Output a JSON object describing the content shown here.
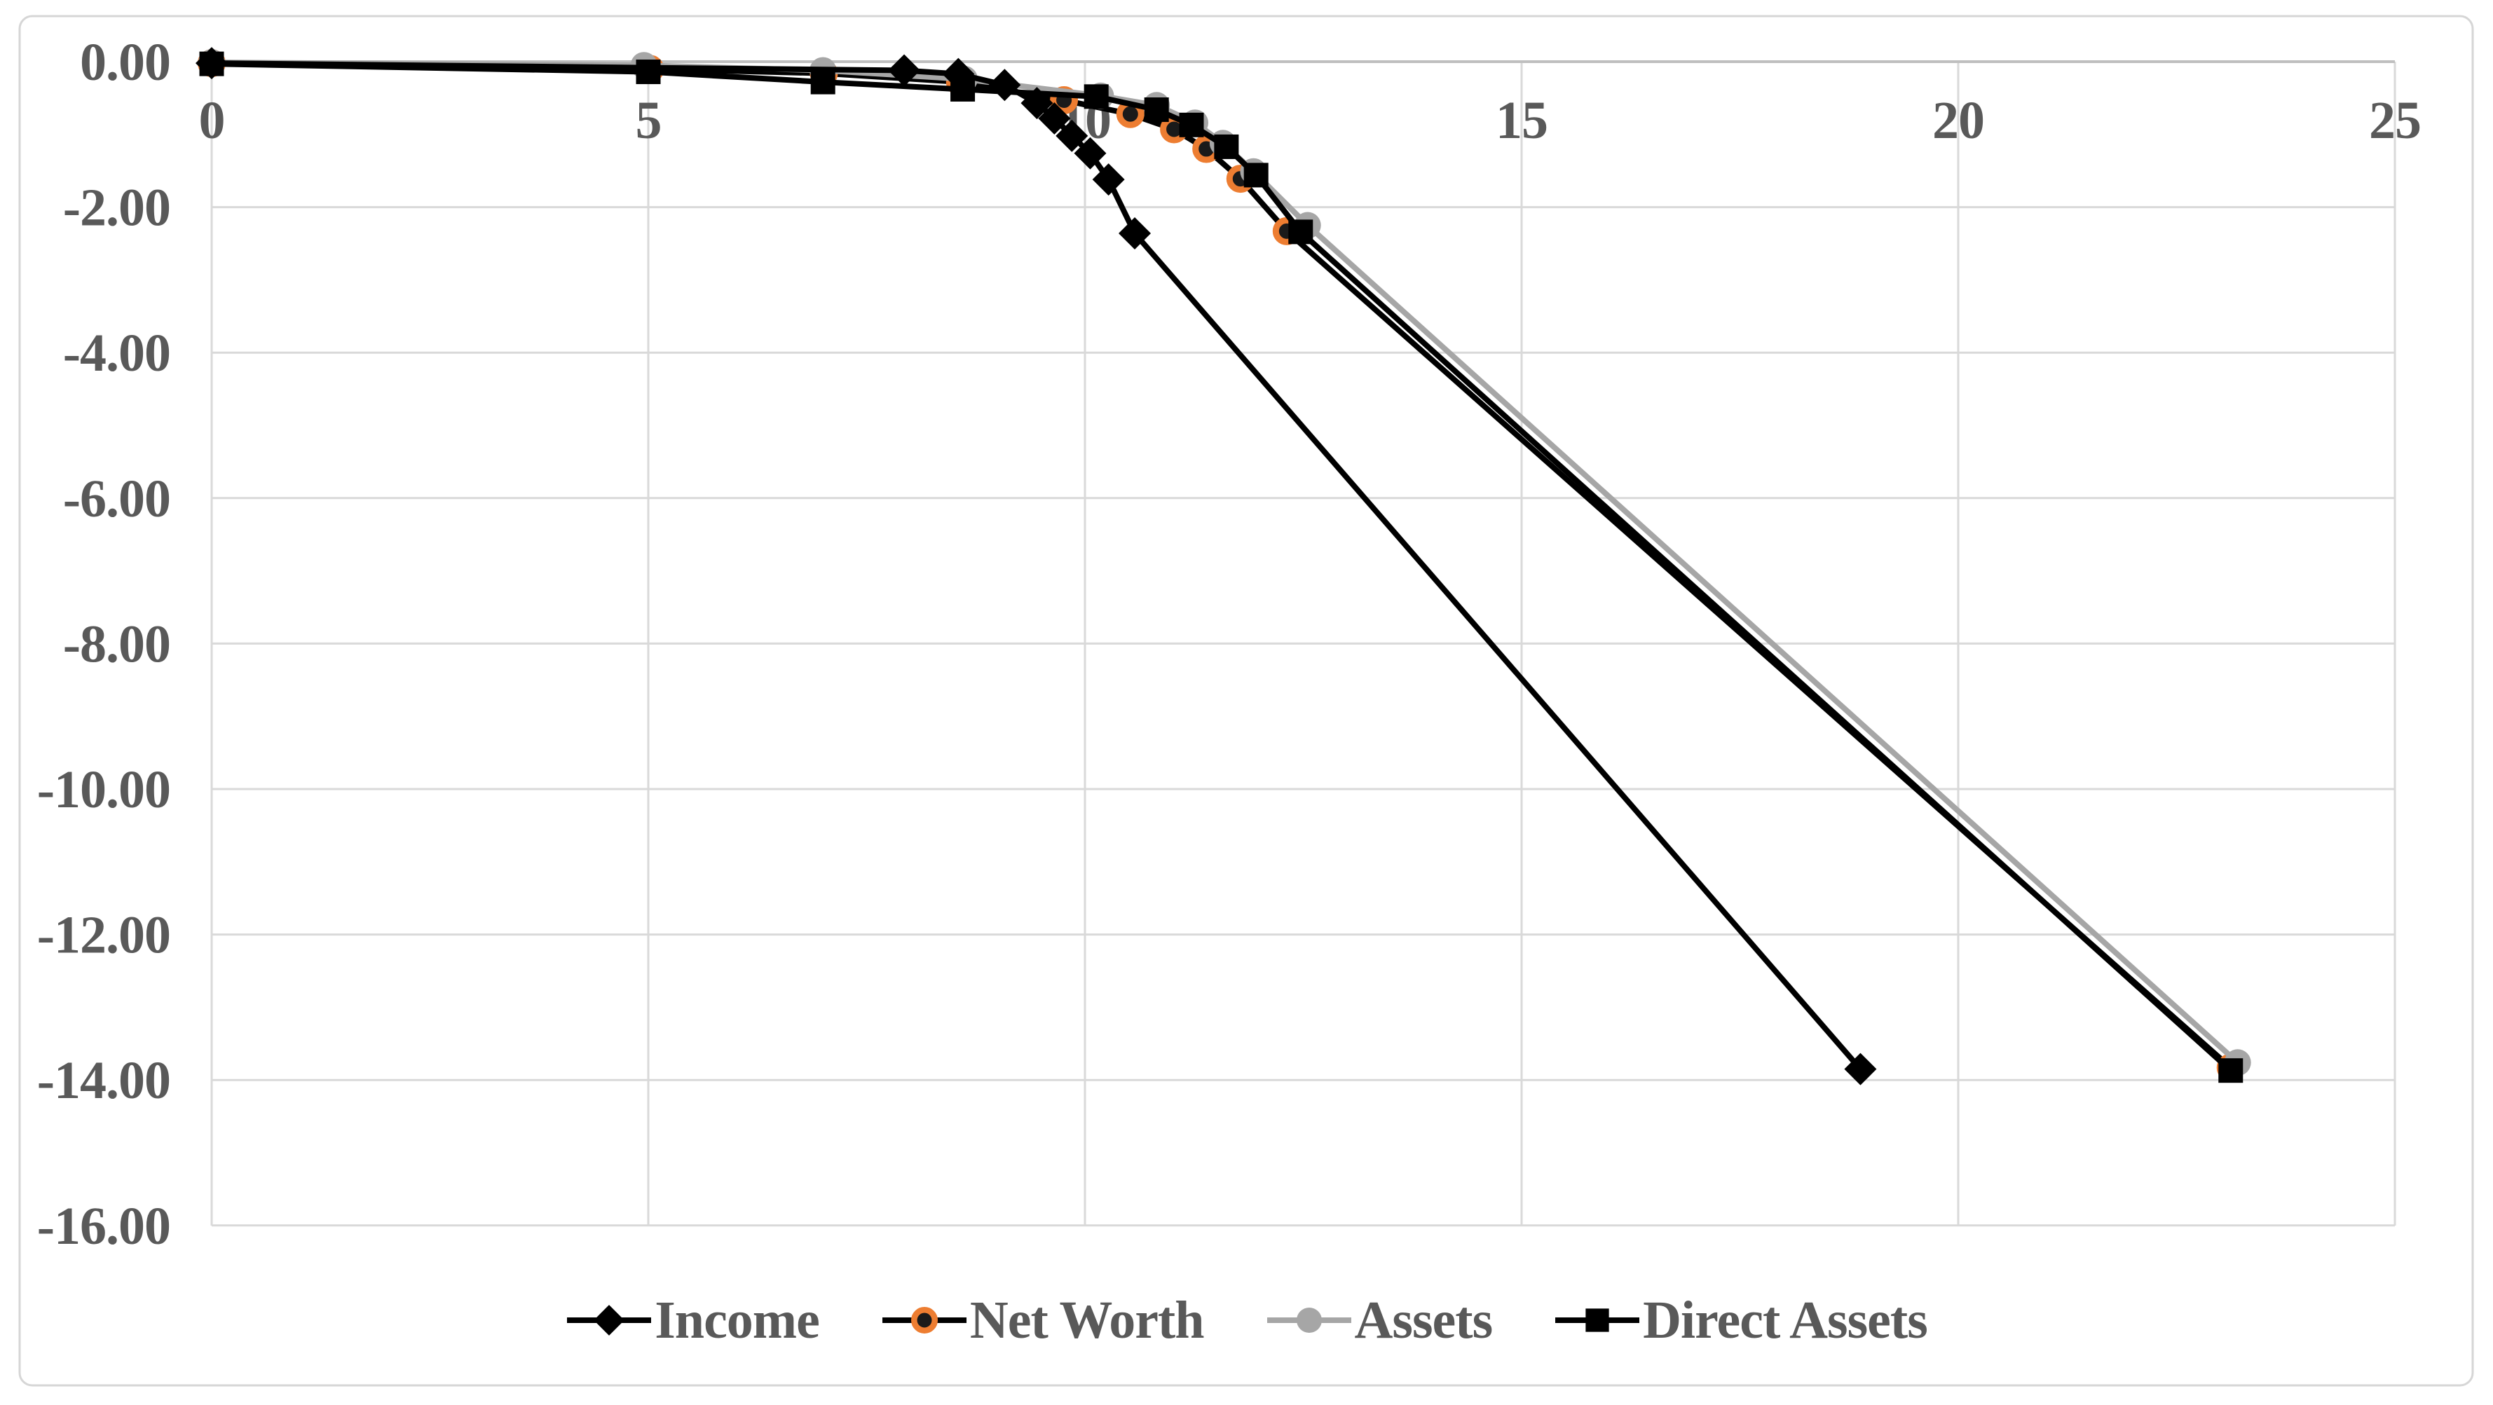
{
  "chart_data": {
    "type": "line",
    "title": "",
    "xlabel": "",
    "ylabel": "",
    "xlim": [
      0,
      25
    ],
    "ylim": [
      -16,
      0
    ],
    "grid": true,
    "legend_position": "bottom-center",
    "x_ticks": [
      0,
      5,
      10,
      15,
      20,
      25
    ],
    "x_tick_labels": [
      "0",
      "5",
      "10",
      "15",
      "20",
      "25"
    ],
    "y_ticks": [
      0,
      -2,
      -4,
      -6,
      -8,
      -10,
      -12,
      -14,
      -16
    ],
    "y_tick_labels": [
      "0.00",
      "-2.00",
      "-4.00",
      "-6.00",
      "-8.00",
      "-10.00",
      "-12.00",
      "-14.00",
      "-16.00"
    ],
    "series": [
      {
        "name": "Income",
        "line_color": "#000000",
        "marker": "diamond",
        "marker_color": "#000000",
        "points": [
          [
            0,
            -0.02
          ],
          [
            7.93,
            -0.12
          ],
          [
            8.55,
            -0.17
          ],
          [
            9.08,
            -0.32
          ],
          [
            9.45,
            -0.57
          ],
          [
            9.65,
            -0.78
          ],
          [
            9.85,
            -1.02
          ],
          [
            10.06,
            -1.26
          ],
          [
            10.27,
            -1.62
          ],
          [
            10.57,
            -2.36
          ],
          [
            18.88,
            -13.85
          ]
        ]
      },
      {
        "name": "Net Worth",
        "line_color": "#000000",
        "marker": "circle-ring",
        "marker_color": "#1a1a1a",
        "marker_ring_color": "#ED7D31",
        "points": [
          [
            0,
            -0.02
          ],
          [
            5.02,
            -0.1
          ],
          [
            7.01,
            -0.16
          ],
          [
            8.57,
            -0.28
          ],
          [
            9.76,
            -0.53
          ],
          [
            10.52,
            -0.72
          ],
          [
            11.02,
            -0.93
          ],
          [
            11.39,
            -1.2
          ],
          [
            11.78,
            -1.61
          ],
          [
            12.31,
            -2.33
          ],
          [
            23.12,
            -13.83
          ]
        ]
      },
      {
        "name": "Assets",
        "line_color": "#A6A6A6",
        "marker": "circle",
        "marker_color": "#A6A6A6",
        "points": [
          [
            0,
            -0.01
          ],
          [
            4.95,
            -0.05
          ],
          [
            7.0,
            -0.12
          ],
          [
            8.62,
            -0.24
          ],
          [
            10.18,
            -0.47
          ],
          [
            10.82,
            -0.6
          ],
          [
            11.26,
            -0.84
          ],
          [
            11.58,
            -1.12
          ],
          [
            11.93,
            -1.51
          ],
          [
            12.55,
            -2.25
          ],
          [
            23.2,
            -13.76
          ]
        ]
      },
      {
        "name": "Direct Assets",
        "line_color": "#000000",
        "marker": "square",
        "marker_color": "#000000",
        "points": [
          [
            0,
            -0.03
          ],
          [
            5.0,
            -0.14
          ],
          [
            7.0,
            -0.28
          ],
          [
            8.6,
            -0.38
          ],
          [
            10.13,
            -0.48
          ],
          [
            10.82,
            -0.66
          ],
          [
            11.22,
            -0.87
          ],
          [
            11.62,
            -1.17
          ],
          [
            11.96,
            -1.56
          ],
          [
            12.47,
            -2.34
          ],
          [
            23.12,
            -13.87
          ]
        ]
      }
    ],
    "colors": {
      "background": "#FFFFFF",
      "chart_border": "#D6D6D6",
      "gridline": "#D9D9D9",
      "axis_line": "#BFBFBF",
      "tick_label": "#595959",
      "legend_text": "#595959",
      "accent_orange": "#ED7D31",
      "accent_gray": "#A6A6A6"
    }
  }
}
